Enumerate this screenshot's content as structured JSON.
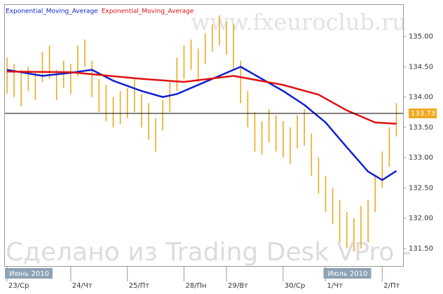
{
  "chart_data": {
    "type": "range_bars",
    "watermark": "www.fxeuroclub.ru",
    "footer_watermark": "Сделано из Trading Desk VPro -",
    "bar_color": "#f0a820",
    "high": [
      134.65,
      134.55,
      134.45,
      134.5,
      134.4,
      134.75,
      134.85,
      134.45,
      134.6,
      134.55,
      134.85,
      134.95,
      134.6,
      134.3,
      134.2,
      134.0,
      134.1,
      134.15,
      134.3,
      134.05,
      133.9,
      133.65,
      133.95,
      134.25,
      134.65,
      134.85,
      134.95,
      134.8,
      135.05,
      135.2,
      135.35,
      135.25,
      135.2,
      134.6,
      134.1,
      133.75,
      133.6,
      133.8,
      133.7,
      133.6,
      133.5,
      133.7,
      133.8,
      133.4,
      133.0,
      132.7,
      132.5,
      132.3,
      132.1,
      132.0,
      132.2,
      132.3,
      132.7,
      133.1,
      133.5,
      133.9
    ],
    "low": [
      134.05,
      134.0,
      133.85,
      134.1,
      133.95,
      134.25,
      134.3,
      133.95,
      134.15,
      134.05,
      134.35,
      134.5,
      134.0,
      133.75,
      133.6,
      133.5,
      133.55,
      133.65,
      133.75,
      133.5,
      133.3,
      133.1,
      133.45,
      133.75,
      134.1,
      134.3,
      134.45,
      134.25,
      134.55,
      134.75,
      134.85,
      134.7,
      134.45,
      133.9,
      133.5,
      133.1,
      133.05,
      133.25,
      133.1,
      133.0,
      132.9,
      133.15,
      133.2,
      132.7,
      132.4,
      132.1,
      131.9,
      131.6,
      131.5,
      131.45,
      131.5,
      131.6,
      132.1,
      132.5,
      132.85,
      133.35
    ],
    "series": [
      {
        "name": "Exponential_Moving_Average",
        "color": "#1020d0",
        "x": [
          0,
          5,
          9,
          12,
          15,
          19,
          22,
          24,
          27,
          30,
          33,
          36,
          39,
          42,
          45,
          48,
          51,
          53,
          55
        ],
        "values": [
          134.45,
          134.35,
          134.4,
          134.45,
          134.27,
          134.1,
          134.0,
          134.05,
          134.2,
          134.35,
          134.5,
          134.3,
          134.1,
          133.87,
          133.58,
          133.17,
          132.77,
          132.63,
          132.78
        ]
      },
      {
        "name": "Exponential_Moving_Average",
        "color": "#e01010",
        "x": [
          0,
          9,
          19,
          25,
          32,
          39,
          44,
          48,
          52,
          55
        ],
        "values": [
          134.42,
          134.41,
          134.3,
          134.25,
          134.35,
          134.2,
          134.04,
          133.78,
          133.58,
          133.56
        ]
      }
    ],
    "last_price": {
      "value": 133.73,
      "label": "133.73"
    },
    "ylim": [
      131.21,
      135.51
    ],
    "yticks": [
      {
        "value": 135,
        "label": "135.00"
      },
      {
        "value": 134.5,
        "label": "134.50"
      },
      {
        "value": 134,
        "label": "134.00"
      },
      {
        "value": 133.5,
        "label": "133.50"
      },
      {
        "value": 133,
        "label": "133.00"
      },
      {
        "value": 132.5,
        "label": "132.50"
      },
      {
        "value": 132,
        "label": "132.00"
      },
      {
        "value": 131.5,
        "label": "131.50"
      }
    ],
    "xticks": [
      {
        "value": 0,
        "label": "23/Ср"
      },
      {
        "value": 9,
        "label": "24/Чт"
      },
      {
        "value": 17,
        "label": "25/Пт"
      },
      {
        "value": 25,
        "label": "28/Пн"
      },
      {
        "value": 31,
        "label": "29/Вт"
      },
      {
        "value": 39,
        "label": "30/Ср"
      },
      {
        "value": 45,
        "label": "1/Чт"
      },
      {
        "value": 53,
        "label": "2/Пт"
      }
    ],
    "month_labels": [
      {
        "value": 0,
        "label": "Июнь 2010"
      },
      {
        "value": 45,
        "label": "Июль 2010"
      }
    ]
  }
}
